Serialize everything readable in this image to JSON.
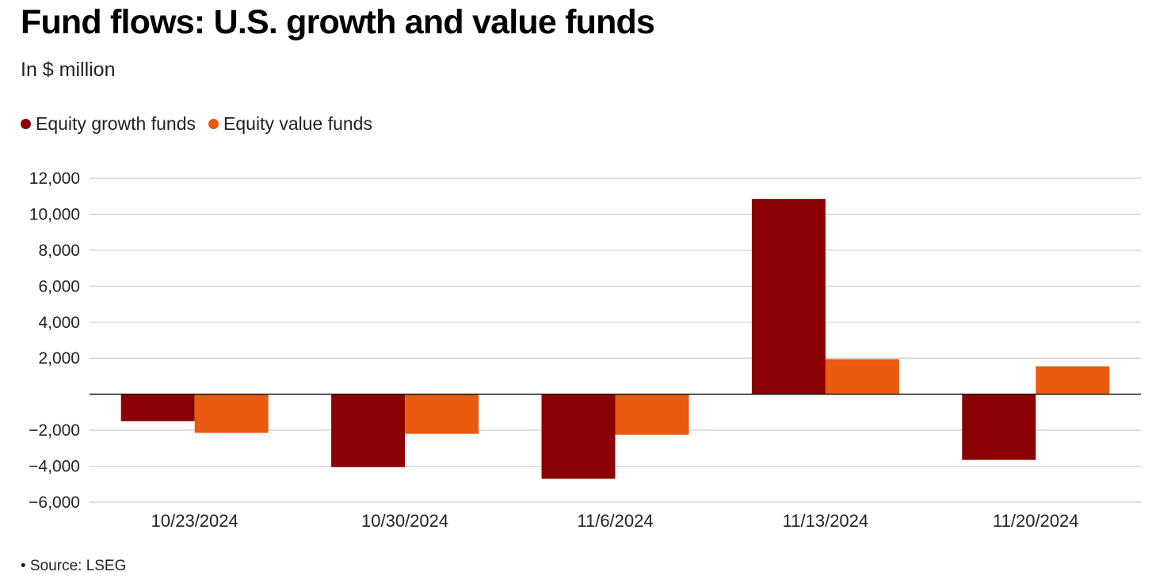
{
  "chart_data": {
    "type": "bar",
    "title": "Fund flows: U.S. growth and value funds",
    "subtitle": "In $ million",
    "categories": [
      "10/23/2024",
      "10/30/2024",
      "11/6/2024",
      "11/13/2024",
      "11/20/2024"
    ],
    "series": [
      {
        "name": "Equity growth funds",
        "color": "#8b0000",
        "values": [
          -1500,
          -4050,
          -4700,
          10850,
          -3650
        ]
      },
      {
        "name": "Equity value funds",
        "color": "#e85b10",
        "values": [
          -2150,
          -2200,
          -2250,
          1950,
          1550
        ]
      }
    ],
    "yticks": [
      12000,
      10000,
      8000,
      6000,
      4000,
      2000,
      -2000,
      -4000,
      -6000
    ],
    "ytick_labels": [
      "12,000",
      "10,000",
      "8,000",
      "6,000",
      "4,000",
      "2,000",
      "−2,000",
      "−4,000",
      "−6,000"
    ],
    "ylim": [
      -6000,
      12000
    ],
    "xlabel": "",
    "ylabel": "",
    "grid": true,
    "legend": "top-left",
    "source": "• Source: LSEG"
  }
}
